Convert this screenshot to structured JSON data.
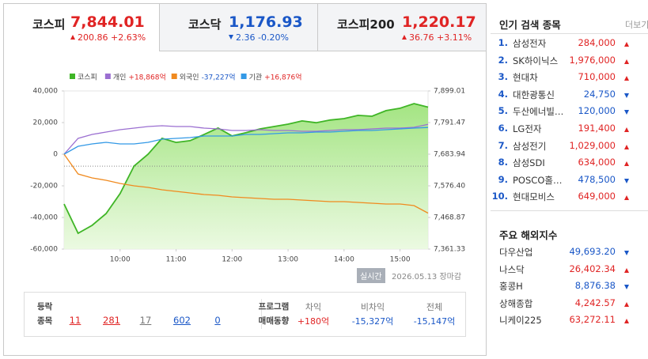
{
  "tabs": [
    {
      "name": "코스피",
      "value": "7,844.01",
      "change": "200.86",
      "rate": "+2.63%",
      "direction": "up",
      "active": true
    },
    {
      "name": "코스닥",
      "value": "1,176.93",
      "change": "2.36",
      "rate": "-0.20%",
      "direction": "down",
      "active": false
    },
    {
      "name": "코스피200",
      "value": "1,220.17",
      "change": "36.76",
      "rate": "+3.11%",
      "direction": "up",
      "active": false
    }
  ],
  "chart_data": {
    "type": "line",
    "x": [
      "09:00",
      "09:15",
      "09:30",
      "09:45",
      "10:00",
      "10:15",
      "10:30",
      "10:45",
      "11:00",
      "11:15",
      "11:30",
      "11:45",
      "12:00",
      "12:15",
      "12:30",
      "12:45",
      "13:00",
      "13:15",
      "13:30",
      "13:45",
      "14:00",
      "14:15",
      "14:30",
      "14:45",
      "15:00",
      "15:15",
      "15:30"
    ],
    "xlim": [
      "09:00",
      "15:30"
    ],
    "xticks": [
      "10:00",
      "11:00",
      "12:00",
      "13:00",
      "14:00",
      "15:00"
    ],
    "ylim": [
      -60000,
      40000
    ],
    "yticks": [
      {
        "value": 40000,
        "label": "40,000"
      },
      {
        "value": 20000,
        "label": "20,000"
      },
      0,
      {
        "value": -20000,
        "label": "-20,000"
      },
      {
        "value": -40000,
        "label": "-40,000"
      },
      {
        "value": -60000,
        "label": "-60,000"
      }
    ],
    "y2lim": [
      7361.33,
      7899.01
    ],
    "y2ticks": [
      {
        "value": 7899.01,
        "label": "7,899.01"
      },
      {
        "value": 7791.47,
        "label": "7,791.47"
      },
      {
        "value": 7683.94,
        "label": "7,683.94"
      },
      {
        "value": 7576.4,
        "label": "7,576.40"
      },
      {
        "value": 7468.87,
        "label": "7,468.87"
      },
      {
        "value": 7361.33,
        "label": "7,361.33"
      }
    ],
    "reference_line": 7643.15,
    "grid": false,
    "series": [
      {
        "name": "코스피",
        "color": "#3fb526",
        "axis": "y2",
        "area": true,
        "values": [
          7514.6,
          7415,
          7442,
          7482,
          7550,
          7644,
          7684,
          7738,
          7724,
          7730,
          7751,
          7773,
          7746,
          7757,
          7770,
          7778,
          7786,
          7797,
          7791,
          7800,
          7805,
          7816,
          7813,
          7832,
          7840,
          7856,
          7844.01
        ]
      },
      {
        "name": "개인",
        "legend_value": "+18,868억",
        "color": "#9b6fd1",
        "values": [
          0,
          10000,
          12500,
          14000,
          15500,
          16500,
          17500,
          18000,
          17500,
          17500,
          16500,
          16000,
          15000,
          15000,
          15500,
          15000,
          15000,
          14500,
          14500,
          15000,
          15500,
          15500,
          16000,
          16500,
          16500,
          17000,
          18868
        ]
      },
      {
        "name": "외국인",
        "legend_value": "-37,227억",
        "color": "#f08a1f",
        "values": [
          0,
          -12500,
          -15000,
          -16500,
          -18500,
          -20000,
          -21000,
          -22500,
          -23500,
          -24500,
          -25500,
          -26000,
          -27000,
          -27500,
          -28000,
          -28500,
          -28500,
          -29000,
          -29500,
          -30000,
          -30000,
          -30500,
          -31000,
          -31500,
          -31500,
          -32500,
          -37227
        ]
      },
      {
        "name": "기관",
        "legend_value": "+16,876억",
        "color": "#3399e6",
        "values": [
          0,
          5000,
          6500,
          7500,
          6500,
          6500,
          7500,
          9500,
          10000,
          10500,
          11500,
          11500,
          11500,
          12500,
          12500,
          13000,
          13500,
          13500,
          14000,
          14000,
          14500,
          15000,
          15000,
          15500,
          16000,
          16500,
          16876
        ]
      }
    ]
  },
  "chart_footer": {
    "badge": "실시간",
    "date": "2026.05.13",
    "status": "장마감"
  },
  "breadth": {
    "title": [
      "등락",
      "종목"
    ],
    "items": [
      {
        "kind": "limit_up",
        "count": 11
      },
      {
        "kind": "up",
        "count": 281
      },
      {
        "kind": "flat",
        "count": 17
      },
      {
        "kind": "down",
        "count": 602
      },
      {
        "kind": "limit_down",
        "count": 0
      }
    ]
  },
  "program": {
    "title": [
      "프로그램",
      "매매동향"
    ],
    "columns": [
      {
        "label": "차익",
        "value": "+180억",
        "direction": "up"
      },
      {
        "label": "비차익",
        "value": "-15,327억",
        "direction": "down"
      },
      {
        "label": "전체",
        "value": "-15,147억",
        "direction": "down"
      }
    ]
  },
  "popular": {
    "title": "인기 검색 종목",
    "more": "더보기",
    "items": [
      {
        "rank": "1.",
        "name": "삼성전자",
        "price": "284,000",
        "direction": "up"
      },
      {
        "rank": "2.",
        "name": "SK하이닉스",
        "price": "1,976,000",
        "direction": "up"
      },
      {
        "rank": "3.",
        "name": "현대차",
        "price": "710,000",
        "direction": "up"
      },
      {
        "rank": "4.",
        "name": "대한광통신",
        "price": "24,750",
        "direction": "down"
      },
      {
        "rank": "5.",
        "name": "두산에너빌…",
        "price": "120,000",
        "direction": "down"
      },
      {
        "rank": "6.",
        "name": "LG전자",
        "price": "191,400",
        "direction": "up"
      },
      {
        "rank": "7.",
        "name": "삼성전기",
        "price": "1,029,000",
        "direction": "up"
      },
      {
        "rank": "8.",
        "name": "삼성SDI",
        "price": "634,000",
        "direction": "up"
      },
      {
        "rank": "9.",
        "name": "POSCO홀…",
        "price": "478,500",
        "direction": "down"
      },
      {
        "rank": "10.",
        "name": "현대모비스",
        "price": "649,000",
        "direction": "up"
      }
    ]
  },
  "world": {
    "title": "주요 해외지수",
    "items": [
      {
        "name": "다우산업",
        "value": "49,693.20",
        "direction": "down"
      },
      {
        "name": "나스닥",
        "value": "26,402.34",
        "direction": "up"
      },
      {
        "name": "홍콩H",
        "value": "8,876.38",
        "direction": "down"
      },
      {
        "name": "상해종합",
        "value": "4,242.57",
        "direction": "up"
      },
      {
        "name": "니케이225",
        "value": "63,272.11",
        "direction": "up"
      }
    ]
  }
}
